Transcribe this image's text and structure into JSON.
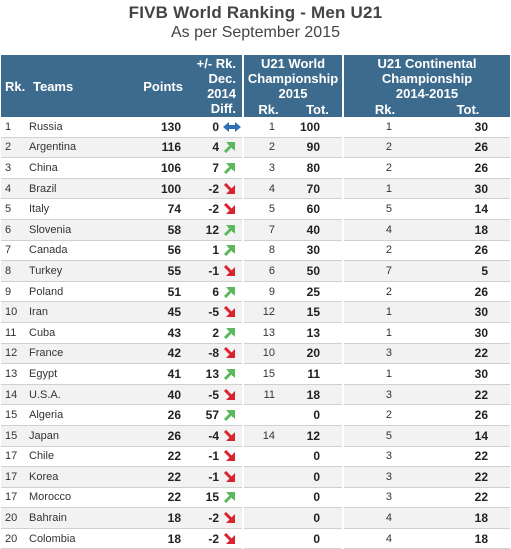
{
  "title": "FIVB World Ranking - Men U21",
  "subtitle": "As per September 2015",
  "headers": {
    "rank": "Rk.",
    "teams": "Teams",
    "points": "Points",
    "diff_line1": "+/- Rk.",
    "diff_line2": "Dec.",
    "diff_line3": "2014",
    "diff_line4": "Diff.",
    "world_line1": "U21 World",
    "world_line2": "Championship",
    "world_line3": "2015",
    "world_rk": "Rk.",
    "world_tot": "Tot.",
    "cont_line1": "U21 Continental",
    "cont_line2": "Championship",
    "cont_line3": "2014-2015",
    "cont_rk": "Rk.",
    "cont_tot": "Tot."
  },
  "colors": {
    "header_bg": "#3d6b8e",
    "arrow_up": "#5cb85c",
    "arrow_down": "#d9232d",
    "arrow_same": "#2f6fb3"
  },
  "rows": [
    {
      "rank": "1",
      "team": "Russia",
      "points": "130",
      "diff": "0",
      "trend": "same",
      "wrk": "1",
      "wtot": "100",
      "crk": "1",
      "ctot": "30"
    },
    {
      "rank": "2",
      "team": "Argentina",
      "points": "116",
      "diff": "4",
      "trend": "up",
      "wrk": "2",
      "wtot": "90",
      "crk": "2",
      "ctot": "26"
    },
    {
      "rank": "3",
      "team": "China",
      "points": "106",
      "diff": "7",
      "trend": "up",
      "wrk": "3",
      "wtot": "80",
      "crk": "2",
      "ctot": "26"
    },
    {
      "rank": "4",
      "team": "Brazil",
      "points": "100",
      "diff": "-2",
      "trend": "down",
      "wrk": "4",
      "wtot": "70",
      "crk": "1",
      "ctot": "30"
    },
    {
      "rank": "5",
      "team": "Italy",
      "points": "74",
      "diff": "-2",
      "trend": "down",
      "wrk": "5",
      "wtot": "60",
      "crk": "5",
      "ctot": "14"
    },
    {
      "rank": "6",
      "team": "Slovenia",
      "points": "58",
      "diff": "12",
      "trend": "up",
      "wrk": "7",
      "wtot": "40",
      "crk": "4",
      "ctot": "18"
    },
    {
      "rank": "7",
      "team": "Canada",
      "points": "56",
      "diff": "1",
      "trend": "up",
      "wrk": "8",
      "wtot": "30",
      "crk": "2",
      "ctot": "26"
    },
    {
      "rank": "8",
      "team": "Turkey",
      "points": "55",
      "diff": "-1",
      "trend": "down",
      "wrk": "6",
      "wtot": "50",
      "crk": "7",
      "ctot": "5"
    },
    {
      "rank": "9",
      "team": "Poland",
      "points": "51",
      "diff": "6",
      "trend": "up",
      "wrk": "9",
      "wtot": "25",
      "crk": "2",
      "ctot": "26"
    },
    {
      "rank": "10",
      "team": "Iran",
      "points": "45",
      "diff": "-5",
      "trend": "down",
      "wrk": "12",
      "wtot": "15",
      "crk": "1",
      "ctot": "30"
    },
    {
      "rank": "11",
      "team": "Cuba",
      "points": "43",
      "diff": "2",
      "trend": "up",
      "wrk": "13",
      "wtot": "13",
      "crk": "1",
      "ctot": "30"
    },
    {
      "rank": "12",
      "team": "France",
      "points": "42",
      "diff": "-8",
      "trend": "down",
      "wrk": "10",
      "wtot": "20",
      "crk": "3",
      "ctot": "22"
    },
    {
      "rank": "13",
      "team": "Egypt",
      "points": "41",
      "diff": "13",
      "trend": "up",
      "wrk": "15",
      "wtot": "11",
      "crk": "1",
      "ctot": "30"
    },
    {
      "rank": "14",
      "team": "U.S.A.",
      "points": "40",
      "diff": "-5",
      "trend": "down",
      "wrk": "11",
      "wtot": "18",
      "crk": "3",
      "ctot": "22"
    },
    {
      "rank": "15",
      "team": "Algeria",
      "points": "26",
      "diff": "57",
      "trend": "up",
      "wrk": "",
      "wtot": "0",
      "crk": "2",
      "ctot": "26"
    },
    {
      "rank": "15",
      "team": "Japan",
      "points": "26",
      "diff": "-4",
      "trend": "down",
      "wrk": "14",
      "wtot": "12",
      "crk": "5",
      "ctot": "14"
    },
    {
      "rank": "17",
      "team": "Chile",
      "points": "22",
      "diff": "-1",
      "trend": "down",
      "wrk": "",
      "wtot": "0",
      "crk": "3",
      "ctot": "22"
    },
    {
      "rank": "17",
      "team": "Korea",
      "points": "22",
      "diff": "-1",
      "trend": "down",
      "wrk": "",
      "wtot": "0",
      "crk": "3",
      "ctot": "22"
    },
    {
      "rank": "17",
      "team": "Morocco",
      "points": "22",
      "diff": "15",
      "trend": "up",
      "wrk": "",
      "wtot": "0",
      "crk": "3",
      "ctot": "22"
    },
    {
      "rank": "20",
      "team": "Bahrain",
      "points": "18",
      "diff": "-2",
      "trend": "down",
      "wrk": "",
      "wtot": "0",
      "crk": "4",
      "ctot": "18"
    },
    {
      "rank": "20",
      "team": "Colombia",
      "points": "18",
      "diff": "-2",
      "trend": "down",
      "wrk": "",
      "wtot": "0",
      "crk": "4",
      "ctot": "18"
    }
  ]
}
